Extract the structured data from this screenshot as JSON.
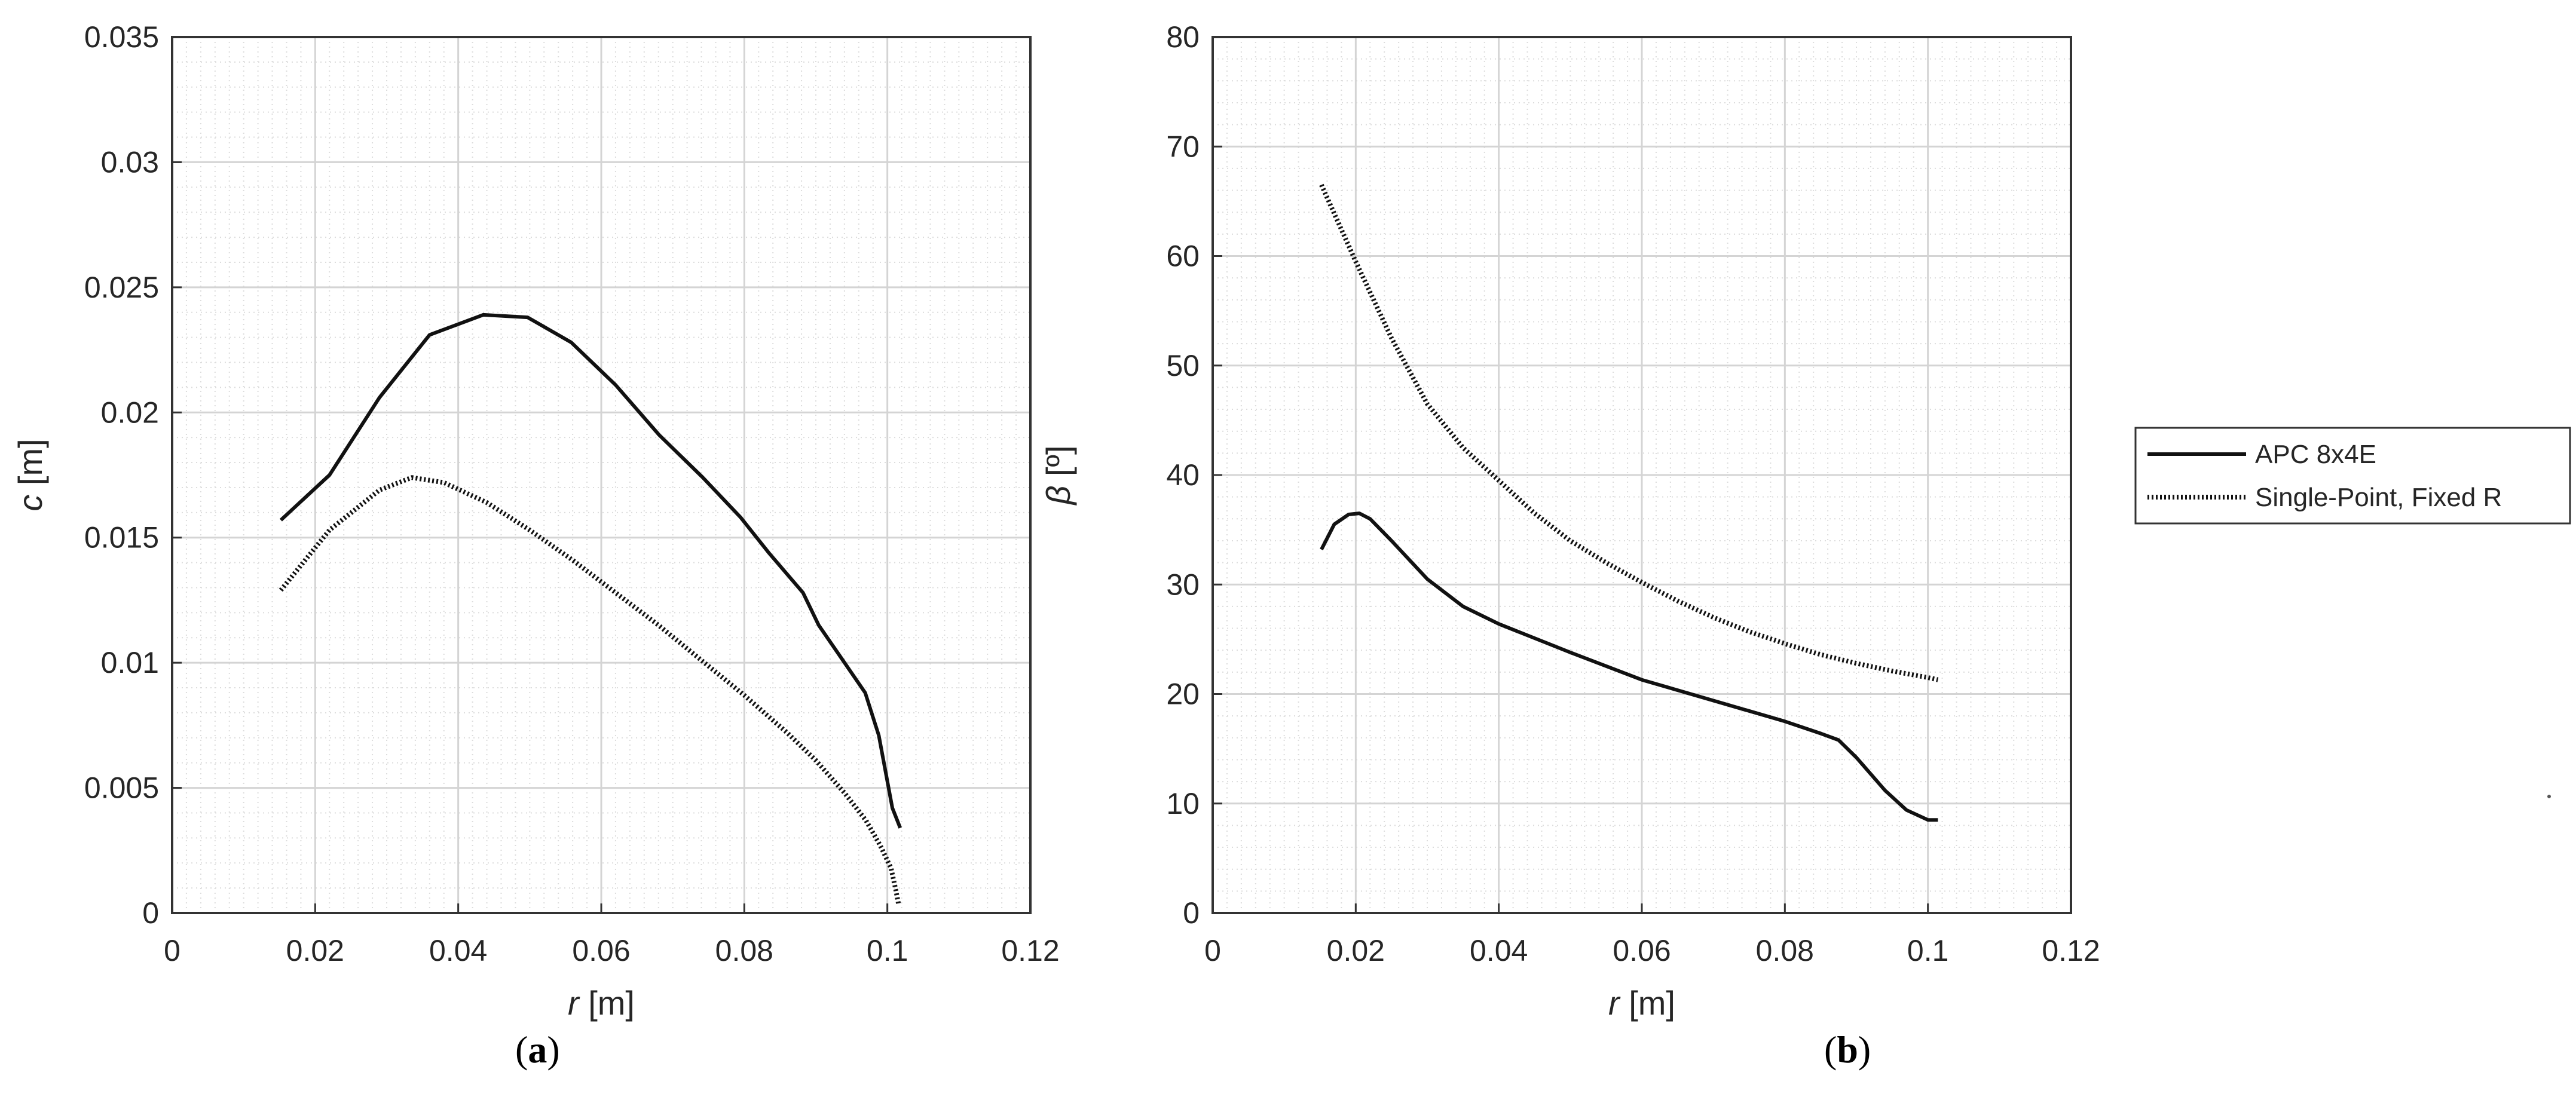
{
  "chart_data": [
    {
      "type": "line",
      "panel_label": "a",
      "xlabel_var": "r",
      "xlabel_unit": " [m]",
      "ylabel_var": "c",
      "ylabel_unit": " [m]",
      "xlim": [
        0,
        0.12
      ],
      "ylim": [
        0,
        0.035
      ],
      "xticks": [
        0,
        0.02,
        0.04,
        0.06,
        0.08,
        0.1,
        0.12
      ],
      "xtick_labels": [
        "0",
        "0.02",
        "0.04",
        "0.06",
        "0.08",
        "0.1",
        "0.12"
      ],
      "yticks": [
        0,
        0.005,
        0.01,
        0.015,
        0.02,
        0.025,
        0.03,
        0.035
      ],
      "ytick_labels": [
        "0",
        "0.005",
        "0.01",
        "0.015",
        "0.02",
        "0.025",
        "0.03",
        "0.035"
      ],
      "grid": true,
      "minor_grid": true,
      "series": [
        {
          "name": "APC 8x4E",
          "style": "solid",
          "x": [
            0.0152,
            0.022,
            0.029,
            0.036,
            0.0435,
            0.0497,
            0.0558,
            0.062,
            0.0681,
            0.0742,
            0.0795,
            0.0834,
            0.0882,
            0.0904,
            0.0969,
            0.0988,
            0.1007,
            0.1018
          ],
          "y": [
            0.0157,
            0.0175,
            0.0206,
            0.0231,
            0.0239,
            0.0238,
            0.0228,
            0.0211,
            0.0191,
            0.0174,
            0.0158,
            0.0144,
            0.0128,
            0.0115,
            0.0088,
            0.0071,
            0.0042,
            0.0034
          ]
        },
        {
          "name": "Single-Point, Fixed R",
          "style": "dotted",
          "x": [
            0.0152,
            0.022,
            0.029,
            0.0335,
            0.038,
            0.044,
            0.05,
            0.056,
            0.062,
            0.068,
            0.074,
            0.08,
            0.086,
            0.09,
            0.094,
            0.097,
            0.099,
            0.1005,
            0.1012,
            0.1016
          ],
          "y": [
            0.0129,
            0.0153,
            0.0169,
            0.0174,
            0.0172,
            0.0164,
            0.0153,
            0.0141,
            0.0128,
            0.0115,
            0.0101,
            0.0087,
            0.0072,
            0.0061,
            0.0048,
            0.0037,
            0.0027,
            0.0018,
            0.0009,
            0.0003
          ]
        }
      ]
    },
    {
      "type": "line",
      "panel_label": "b",
      "xlabel_var": "r",
      "xlabel_unit": " [m]",
      "ylabel_var": "β",
      "ylabel_unit": " [º]",
      "xlim": [
        0,
        0.12
      ],
      "ylim": [
        0,
        80
      ],
      "xticks": [
        0,
        0.02,
        0.04,
        0.06,
        0.08,
        0.1,
        0.12
      ],
      "xtick_labels": [
        "0",
        "0.02",
        "0.04",
        "0.06",
        "0.08",
        "0.1",
        "0.12"
      ],
      "yticks": [
        0,
        10,
        20,
        30,
        40,
        50,
        60,
        70,
        80
      ],
      "ytick_labels": [
        "0",
        "10",
        "20",
        "30",
        "40",
        "50",
        "60",
        "70",
        "80"
      ],
      "grid": true,
      "minor_grid": true,
      "legend": {
        "placement": "right-outside",
        "entries": [
          "APC 8x4E",
          "Single-Point, Fixed R"
        ]
      },
      "series": [
        {
          "name": "APC 8x4E",
          "style": "solid",
          "x": [
            0.0152,
            0.017,
            0.019,
            0.0205,
            0.022,
            0.025,
            0.03,
            0.035,
            0.04,
            0.05,
            0.06,
            0.07,
            0.08,
            0.085,
            0.0875,
            0.09,
            0.094,
            0.097,
            0.1,
            0.1014
          ],
          "y": [
            33.2,
            35.5,
            36.4,
            36.5,
            36.0,
            34.0,
            30.5,
            28.0,
            26.4,
            23.8,
            21.3,
            19.4,
            17.5,
            16.4,
            15.8,
            14.2,
            11.2,
            9.4,
            8.5,
            8.5
          ]
        },
        {
          "name": "Single-Point, Fixed R",
          "style": "dotted",
          "x": [
            0.0152,
            0.02,
            0.025,
            0.03,
            0.035,
            0.04,
            0.045,
            0.05,
            0.055,
            0.06,
            0.065,
            0.07,
            0.075,
            0.08,
            0.085,
            0.09,
            0.095,
            0.1,
            0.1014
          ],
          "y": [
            66.5,
            59.5,
            52.5,
            46.5,
            42.5,
            39.5,
            36.5,
            34.0,
            32.0,
            30.2,
            28.5,
            27.0,
            25.7,
            24.6,
            23.6,
            22.8,
            22.1,
            21.5,
            21.3
          ]
        }
      ]
    }
  ]
}
